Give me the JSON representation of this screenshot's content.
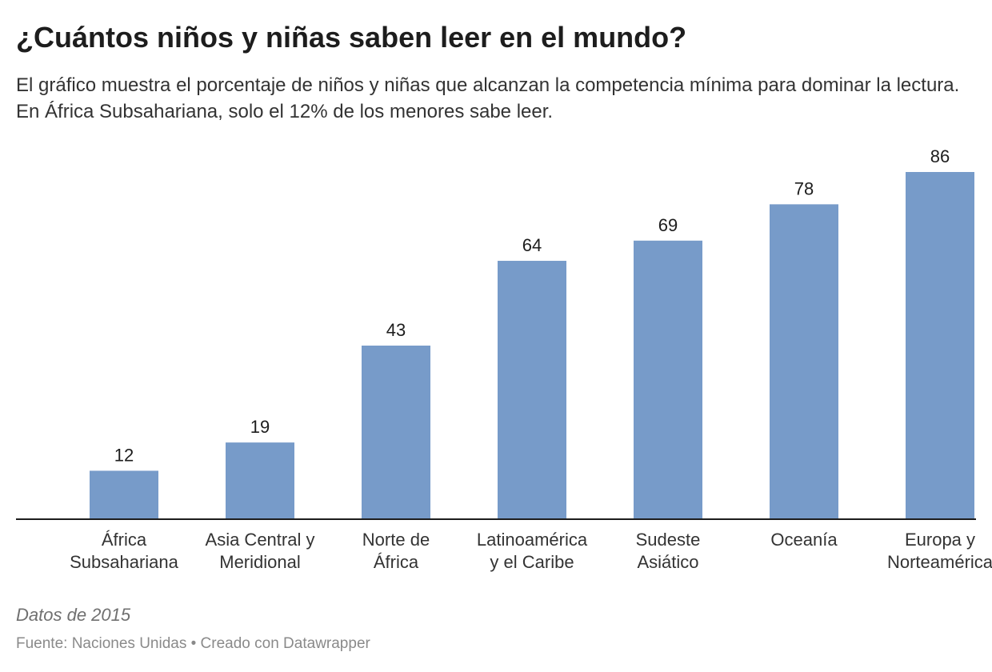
{
  "chart_data": {
    "type": "bar",
    "title": "¿Cuántos niños y niñas saben leer en el mundo?",
    "subtitle": "El gráfico muestra el porcentaje de niños y niñas que alcanzan la competencia mínima para dominar la lectura. En África Subsahariana, solo el 12% de los menores sabe leer.",
    "categories": [
      [
        "África",
        "Subsahariana"
      ],
      [
        "Asia Central y",
        "Meridional"
      ],
      [
        "Norte de",
        "África"
      ],
      [
        "Latinoamérica",
        "y el Caribe"
      ],
      [
        "Sudeste",
        "Asiático"
      ],
      [
        "Oceanía"
      ],
      [
        "Europa y",
        "Norteamérica"
      ]
    ],
    "values": [
      12,
      19,
      43,
      64,
      69,
      78,
      86
    ],
    "ylim": [
      0,
      86
    ],
    "grid": false,
    "bar_color": "#779bc9",
    "xlabel": "",
    "ylabel": ""
  },
  "footer": {
    "note": "Datos de 2015",
    "source": "Fuente: Naciones Unidas • Creado con Datawrapper"
  }
}
